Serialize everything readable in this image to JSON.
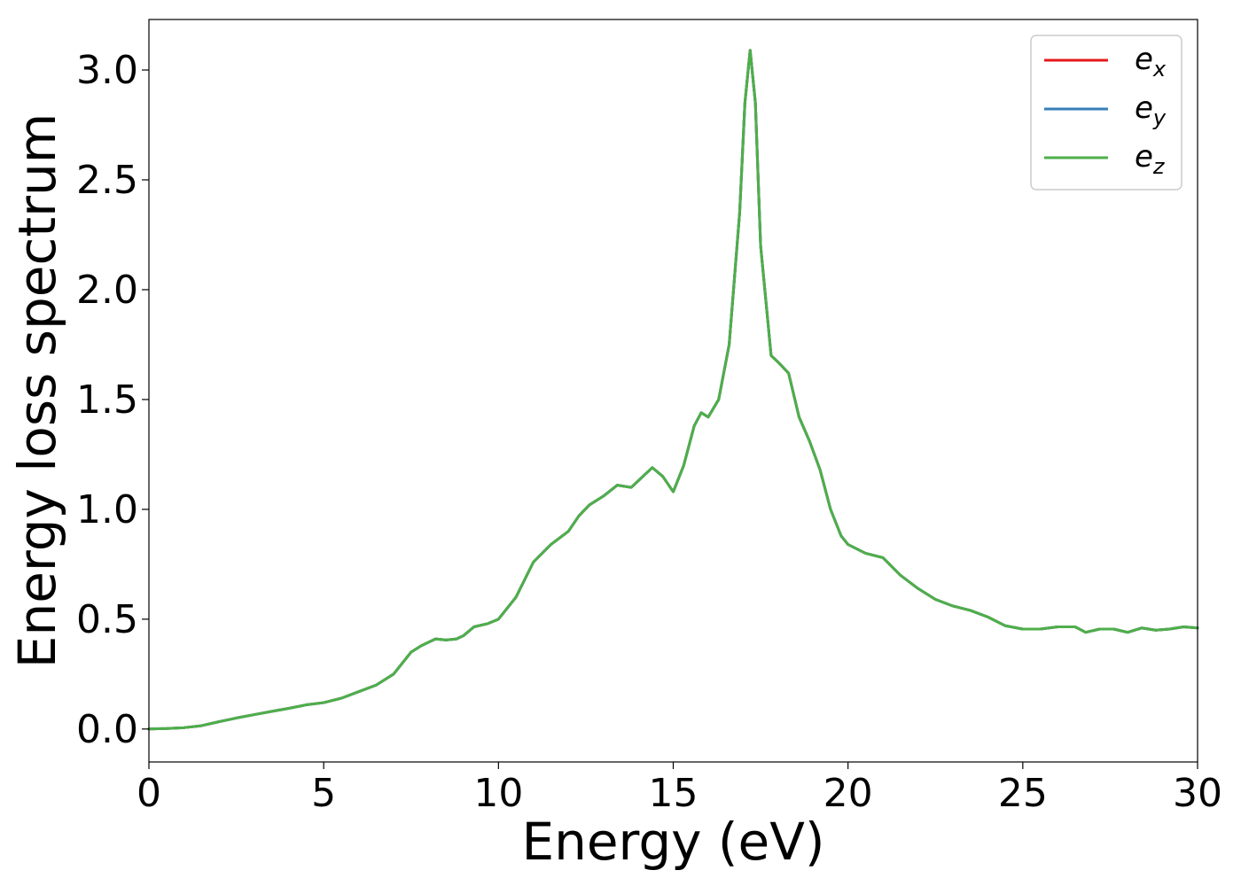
{
  "chart_data": {
    "type": "line",
    "title": "",
    "xlabel": "Energy (eV)",
    "ylabel": "Energy loss spectrum",
    "xlim": [
      0,
      30
    ],
    "ylim": [
      -0.15,
      3.23
    ],
    "xticks": [
      0,
      5,
      10,
      15,
      20,
      25,
      30
    ],
    "xtick_labels": [
      "0",
      "5",
      "10",
      "15",
      "20",
      "25",
      "30"
    ],
    "yticks": [
      0.0,
      0.5,
      1.0,
      1.5,
      2.0,
      2.5,
      3.0
    ],
    "ytick_labels": [
      "0.0",
      "0.5",
      "1.0",
      "1.5",
      "2.0",
      "2.5",
      "3.0"
    ],
    "grid": false,
    "legend_position": "top-right",
    "series": [
      {
        "name": "e_x",
        "label_main": "e",
        "label_sub": "x",
        "color": "#e41a1c",
        "x": [
          0,
          0.5,
          1,
          1.5,
          2,
          2.5,
          3,
          3.5,
          4,
          4.5,
          5,
          5.5,
          6,
          6.5,
          7,
          7.5,
          7.8,
          8.2,
          8.5,
          8.8,
          9,
          9.3,
          9.7,
          10,
          10.5,
          11,
          11.5,
          12,
          12.3,
          12.6,
          13,
          13.4,
          13.8,
          14,
          14.4,
          14.7,
          15,
          15.3,
          15.6,
          15.8,
          16,
          16.3,
          16.6,
          16.9,
          17.05,
          17.2,
          17.35,
          17.5,
          17.8,
          18.0,
          18.3,
          18.6,
          18.9,
          19.2,
          19.5,
          19.8,
          20,
          20.5,
          21,
          21.5,
          22,
          22.5,
          23,
          23.5,
          24,
          24.5,
          25,
          25.5,
          26,
          26.5,
          26.8,
          27.2,
          27.6,
          28,
          28.4,
          28.8,
          29.2,
          29.6,
          30
        ],
        "y": [
          0.0,
          0.002,
          0.006,
          0.015,
          0.033,
          0.05,
          0.065,
          0.08,
          0.094,
          0.11,
          0.12,
          0.14,
          0.17,
          0.2,
          0.25,
          0.35,
          0.38,
          0.41,
          0.405,
          0.41,
          0.425,
          0.465,
          0.48,
          0.5,
          0.6,
          0.76,
          0.84,
          0.9,
          0.97,
          1.02,
          1.06,
          1.11,
          1.1,
          1.13,
          1.19,
          1.15,
          1.08,
          1.2,
          1.38,
          1.44,
          1.42,
          1.5,
          1.75,
          2.35,
          2.85,
          3.09,
          2.85,
          2.2,
          1.7,
          1.67,
          1.62,
          1.42,
          1.31,
          1.18,
          1.0,
          0.88,
          0.84,
          0.8,
          0.78,
          0.7,
          0.64,
          0.59,
          0.56,
          0.54,
          0.51,
          0.47,
          0.455,
          0.455,
          0.465,
          0.465,
          0.44,
          0.455,
          0.455,
          0.44,
          0.46,
          0.45,
          0.455,
          0.465,
          0.46
        ]
      },
      {
        "name": "e_y",
        "label_main": "e",
        "label_sub": "y",
        "color": "#377eb8",
        "x": [
          0,
          0.5,
          1,
          1.5,
          2,
          2.5,
          3,
          3.5,
          4,
          4.5,
          5,
          5.5,
          6,
          6.5,
          7,
          7.5,
          7.8,
          8.2,
          8.5,
          8.8,
          9,
          9.3,
          9.7,
          10,
          10.5,
          11,
          11.5,
          12,
          12.3,
          12.6,
          13,
          13.4,
          13.8,
          14,
          14.4,
          14.7,
          15,
          15.3,
          15.6,
          15.8,
          16,
          16.3,
          16.6,
          16.9,
          17.05,
          17.2,
          17.35,
          17.5,
          17.8,
          18.0,
          18.3,
          18.6,
          18.9,
          19.2,
          19.5,
          19.8,
          20,
          20.5,
          21,
          21.5,
          22,
          22.5,
          23,
          23.5,
          24,
          24.5,
          25,
          25.5,
          26,
          26.5,
          26.8,
          27.2,
          27.6,
          28,
          28.4,
          28.8,
          29.2,
          29.6,
          30
        ],
        "y": [
          0.0,
          0.002,
          0.006,
          0.015,
          0.033,
          0.05,
          0.065,
          0.08,
          0.094,
          0.11,
          0.12,
          0.14,
          0.17,
          0.2,
          0.25,
          0.35,
          0.38,
          0.41,
          0.405,
          0.41,
          0.425,
          0.465,
          0.48,
          0.5,
          0.6,
          0.76,
          0.84,
          0.9,
          0.97,
          1.02,
          1.06,
          1.11,
          1.1,
          1.13,
          1.19,
          1.15,
          1.08,
          1.2,
          1.38,
          1.44,
          1.42,
          1.5,
          1.75,
          2.35,
          2.85,
          3.09,
          2.85,
          2.2,
          1.7,
          1.67,
          1.62,
          1.42,
          1.31,
          1.18,
          1.0,
          0.88,
          0.84,
          0.8,
          0.78,
          0.7,
          0.64,
          0.59,
          0.56,
          0.54,
          0.51,
          0.47,
          0.455,
          0.455,
          0.465,
          0.465,
          0.44,
          0.455,
          0.455,
          0.44,
          0.46,
          0.45,
          0.455,
          0.465,
          0.46
        ]
      },
      {
        "name": "e_z",
        "label_main": "e",
        "label_sub": "z",
        "color": "#4daf4a",
        "x": [
          0,
          0.5,
          1,
          1.5,
          2,
          2.5,
          3,
          3.5,
          4,
          4.5,
          5,
          5.5,
          6,
          6.5,
          7,
          7.5,
          7.8,
          8.2,
          8.5,
          8.8,
          9,
          9.3,
          9.7,
          10,
          10.5,
          11,
          11.5,
          12,
          12.3,
          12.6,
          13,
          13.4,
          13.8,
          14,
          14.4,
          14.7,
          15,
          15.3,
          15.6,
          15.8,
          16,
          16.3,
          16.6,
          16.9,
          17.05,
          17.2,
          17.35,
          17.5,
          17.8,
          18.0,
          18.3,
          18.6,
          18.9,
          19.2,
          19.5,
          19.8,
          20,
          20.5,
          21,
          21.5,
          22,
          22.5,
          23,
          23.5,
          24,
          24.5,
          25,
          25.5,
          26,
          26.5,
          26.8,
          27.2,
          27.6,
          28,
          28.4,
          28.8,
          29.2,
          29.6,
          30
        ],
        "y": [
          0.0,
          0.002,
          0.006,
          0.015,
          0.033,
          0.05,
          0.065,
          0.08,
          0.094,
          0.11,
          0.12,
          0.14,
          0.17,
          0.2,
          0.25,
          0.35,
          0.38,
          0.41,
          0.405,
          0.41,
          0.425,
          0.465,
          0.48,
          0.5,
          0.6,
          0.76,
          0.84,
          0.9,
          0.97,
          1.02,
          1.06,
          1.11,
          1.1,
          1.13,
          1.19,
          1.15,
          1.08,
          1.2,
          1.38,
          1.44,
          1.42,
          1.5,
          1.75,
          2.35,
          2.85,
          3.09,
          2.85,
          2.2,
          1.7,
          1.67,
          1.62,
          1.42,
          1.31,
          1.18,
          1.0,
          0.88,
          0.84,
          0.8,
          0.78,
          0.7,
          0.64,
          0.59,
          0.56,
          0.54,
          0.51,
          0.47,
          0.455,
          0.455,
          0.465,
          0.465,
          0.44,
          0.455,
          0.455,
          0.44,
          0.46,
          0.45,
          0.455,
          0.465,
          0.46
        ]
      }
    ]
  }
}
